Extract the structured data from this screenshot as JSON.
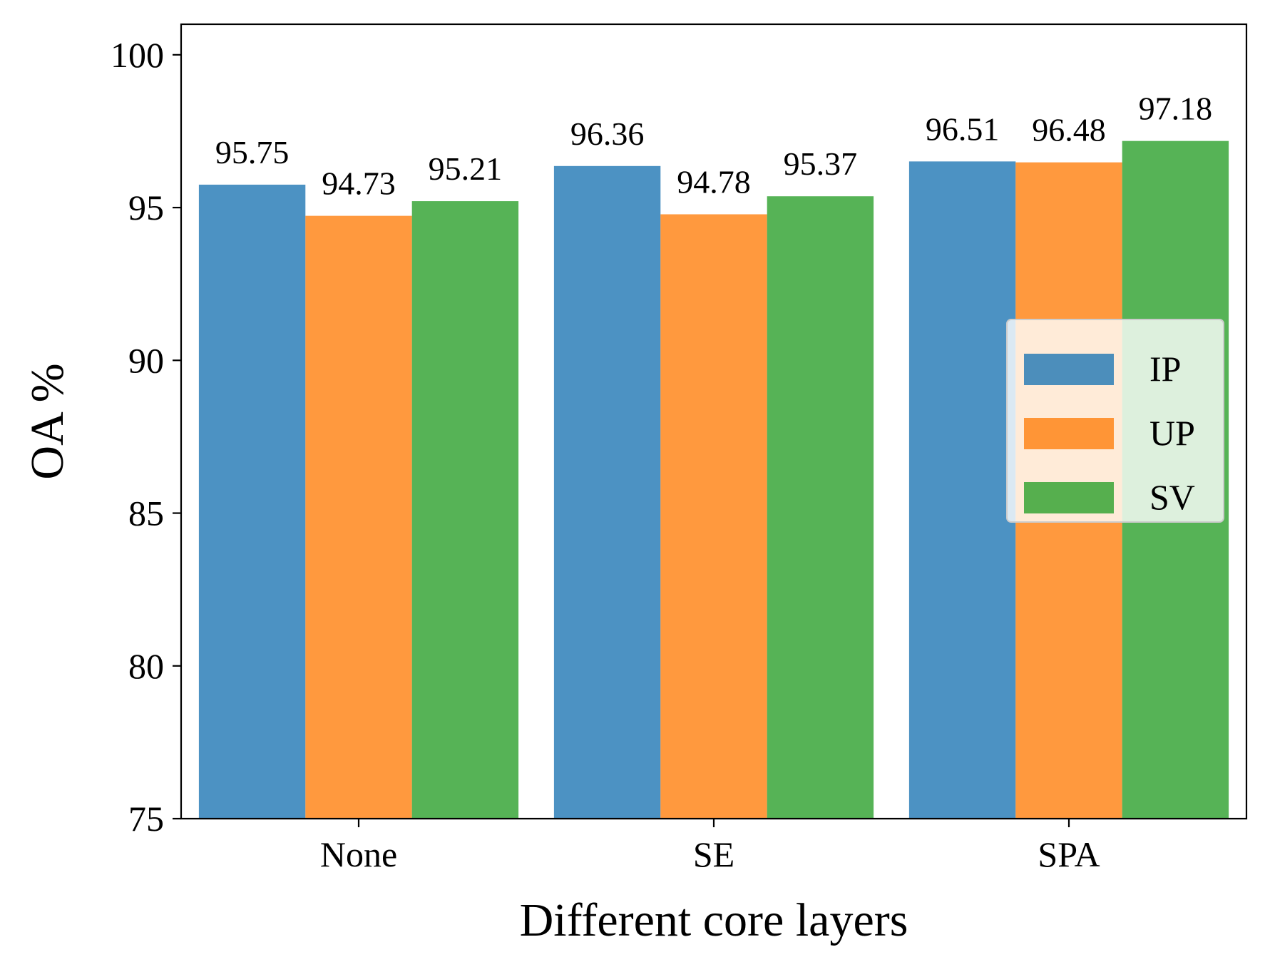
{
  "chart_data": {
    "type": "bar",
    "categories": [
      "None",
      "SE",
      "SPA"
    ],
    "series": [
      {
        "name": "IP",
        "color": "#1f77b4",
        "values": [
          95.75,
          96.36,
          96.51
        ]
      },
      {
        "name": "UP",
        "color": "#ff7f0e",
        "values": [
          94.73,
          94.78,
          96.48
        ]
      },
      {
        "name": "SV",
        "color": "#2ca02c",
        "values": [
          95.21,
          95.37,
          97.18
        ]
      }
    ],
    "data_labels": [
      [
        "95.75",
        "96.36",
        "96.51"
      ],
      [
        "94.73",
        "94.78",
        "96.48"
      ],
      [
        "95.21",
        "95.37",
        "97.18"
      ]
    ],
    "bar_opacity": 0.8,
    "xlabel": "Different core layers",
    "ylabel": "OA %",
    "ylim": [
      75,
      101
    ],
    "yticks": [
      75,
      80,
      85,
      90,
      95,
      100
    ],
    "ytick_labels": [
      "75",
      "80",
      "85",
      "90",
      "95",
      "100"
    ],
    "grid": false,
    "legend_position": "center-right"
  }
}
